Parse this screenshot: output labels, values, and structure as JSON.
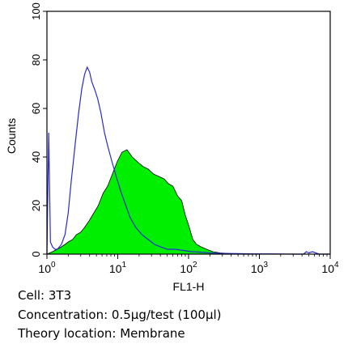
{
  "chart_data": {
    "type": "area",
    "xlabel": "FL1-H",
    "ylabel": "Counts",
    "x_scale": "log",
    "xlim": [
      1,
      10000
    ],
    "ylim": [
      0,
      100
    ],
    "x_ticks": [
      {
        "value": 1,
        "base": "10",
        "exp": "0"
      },
      {
        "value": 10,
        "base": "10",
        "exp": "1"
      },
      {
        "value": 100,
        "base": "10",
        "exp": "2"
      },
      {
        "value": 1000,
        "base": "10",
        "exp": "3"
      },
      {
        "value": 10000,
        "base": "10",
        "exp": "4"
      }
    ],
    "y_ticks": [
      0,
      20,
      40,
      60,
      80,
      100
    ],
    "grid": false,
    "series": [
      {
        "style": "outline",
        "color": "#2a2ad0",
        "x": [
          1.0,
          1.06,
          1.12,
          1.2,
          1.3,
          1.4,
          1.5,
          1.6,
          1.8,
          2.0,
          2.2,
          2.5,
          2.8,
          3.1,
          3.4,
          3.7,
          4.0,
          4.3,
          4.7,
          5.2,
          5.8,
          6.5,
          7.3,
          8.3,
          9.5,
          11,
          13,
          15,
          18,
          22,
          27,
          33,
          40,
          50,
          65,
          85,
          110,
          150,
          200,
          300,
          500,
          800,
          1500,
          3000,
          4200,
          4600,
          5000,
          5600,
          7000,
          10000
        ],
        "y": [
          0,
          50,
          5,
          3,
          2,
          2,
          3,
          4,
          8,
          17,
          30,
          45,
          58,
          68,
          74,
          77,
          75,
          71,
          68,
          64,
          58,
          50,
          44,
          38,
          32,
          26,
          20,
          15,
          11,
          8,
          6,
          4,
          3,
          2,
          2,
          1.5,
          1,
          0.8,
          0.5,
          0.3,
          0.2,
          0.1,
          0.1,
          0,
          0,
          1,
          0.5,
          1,
          0,
          0
        ]
      },
      {
        "style": "filled",
        "color": "#00ee00",
        "x": [
          1.0,
          1.2,
          1.4,
          1.6,
          1.8,
          2.0,
          2.3,
          2.6,
          3.0,
          3.4,
          4.0,
          4.6,
          5.3,
          6.2,
          7.2,
          8.4,
          9.8,
          11.5,
          13.5,
          16,
          19,
          23,
          27,
          32,
          38,
          45,
          52,
          60,
          70,
          80,
          90,
          100,
          115,
          130,
          150,
          180,
          220,
          280,
          400,
          600,
          1000,
          10000
        ],
        "y": [
          0,
          1,
          2,
          3,
          4,
          5,
          6,
          8,
          9,
          11,
          14,
          17,
          20,
          25,
          28,
          33,
          38,
          42,
          43,
          40,
          38,
          36,
          35,
          33,
          32,
          31,
          29,
          28,
          24,
          22,
          16,
          12,
          6,
          4,
          3,
          2,
          1,
          0.5,
          0.2,
          0.1,
          0,
          0
        ]
      }
    ]
  },
  "captions": {
    "cell": "Cell: 3T3",
    "concentration": "Concentration: 0.5µg/test (100µl)",
    "location": "Theory location: Membrane"
  }
}
